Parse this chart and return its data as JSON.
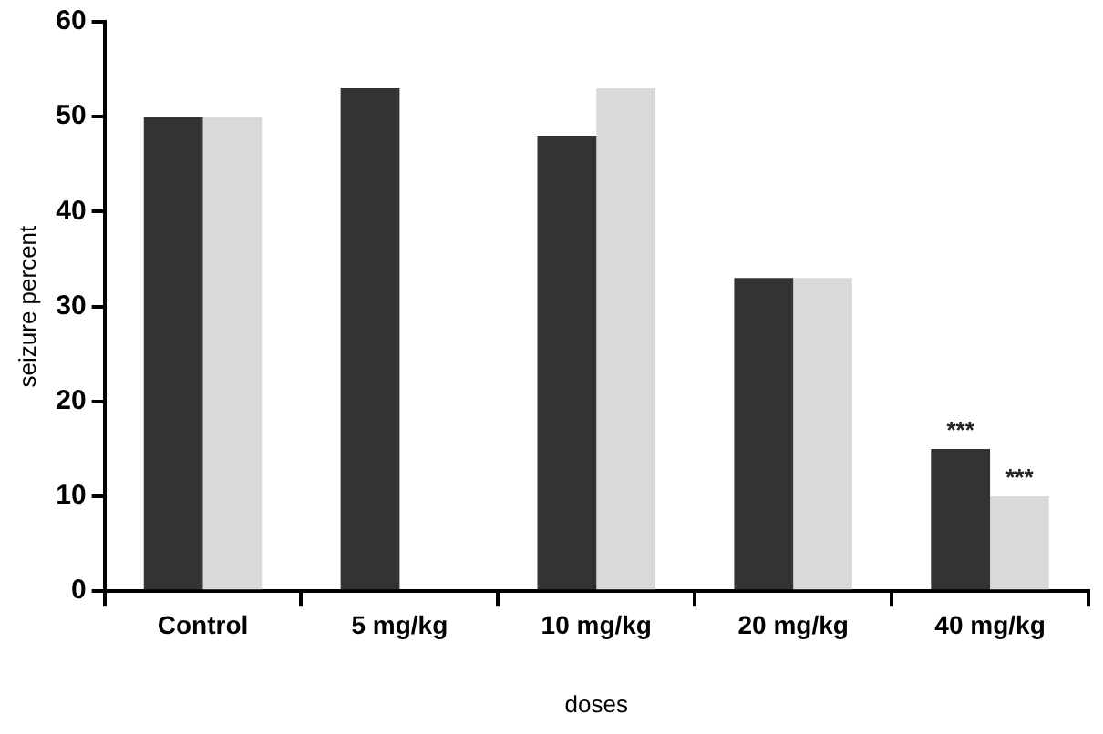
{
  "chart_data": {
    "type": "bar",
    "xlabel": "doses",
    "ylabel": "seizure percent",
    "categories": [
      "Control",
      "5 mg/kg",
      "10 mg/kg",
      "20 mg/kg",
      "40 mg/kg"
    ],
    "series": [
      {
        "color": "#333333",
        "values": [
          50,
          53,
          48,
          33,
          15
        ]
      },
      {
        "color": "#d9d9d9",
        "values": [
          50,
          null,
          53,
          33,
          10
        ]
      }
    ],
    "ylim": [
      0,
      60
    ],
    "yticks": [
      0,
      10,
      20,
      30,
      40,
      50,
      60
    ],
    "grid": false,
    "legend": false,
    "annotations": [
      {
        "text": "***",
        "x": "40 mg/kg",
        "y": 15
      },
      {
        "text": "***",
        "x": "40 mg/kg",
        "y": 10
      }
    ]
  }
}
